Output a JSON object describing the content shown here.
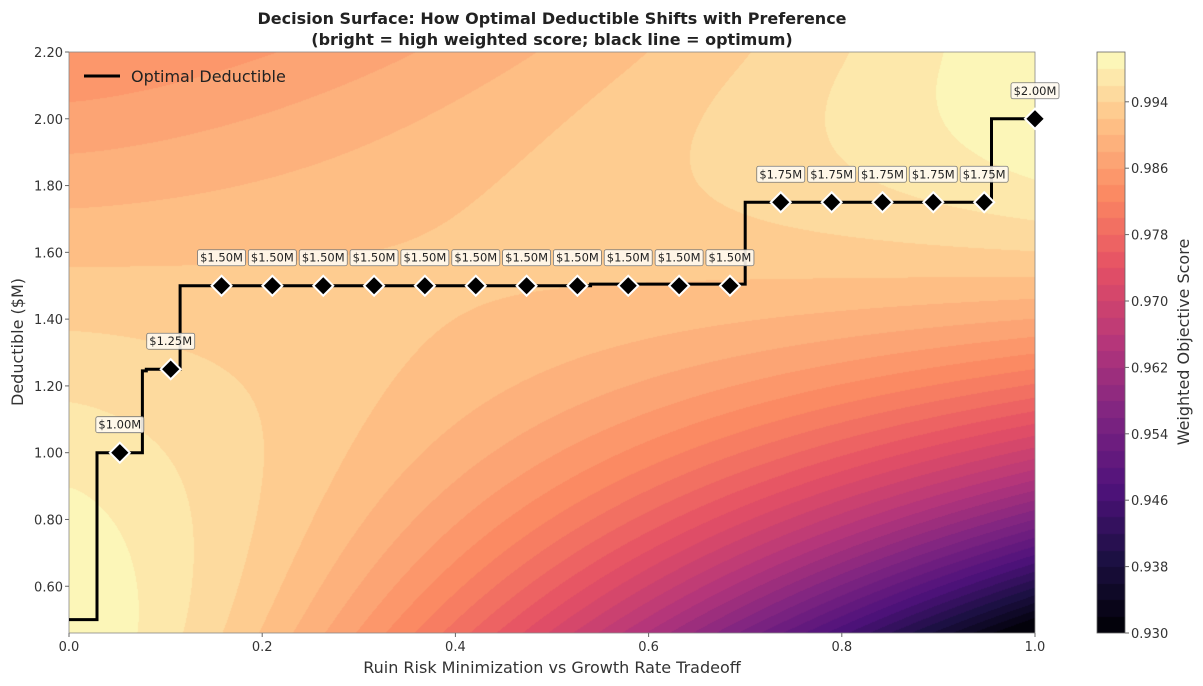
{
  "chart_data": {
    "type": "heatmap",
    "title_line1": "Decision Surface: How Optimal Deductible Shifts with Preference",
    "title_line2": "(bright = high weighted score; black line = optimum)",
    "xlabel": "Ruin Risk Minimization vs Growth Rate Tradeoff",
    "ylabel": "Deductible ($M)",
    "xlim": [
      0.0,
      1.0
    ],
    "ylim": [
      0.46,
      2.2
    ],
    "xticks": [
      "0.0",
      "0.2",
      "0.4",
      "0.6",
      "0.8",
      "1.0"
    ],
    "yticks": [
      "0.60",
      "0.80",
      "1.00",
      "1.20",
      "1.40",
      "1.60",
      "1.80",
      "2.00",
      "2.20"
    ],
    "colormap": "magma",
    "colorbar": {
      "label": "Weighted Objective Score",
      "range": [
        0.93,
        1.0
      ],
      "ticks": [
        "0.930",
        "0.938",
        "0.946",
        "0.954",
        "0.962",
        "0.970",
        "0.978",
        "0.986",
        "0.994"
      ]
    },
    "legend": {
      "position": "top-left",
      "entries": [
        "Optimal Deductible"
      ]
    },
    "optimal_line": {
      "color": "#000000",
      "points": [
        [
          0.0,
          0.5
        ],
        [
          0.029,
          0.5
        ],
        [
          0.029,
          1.0
        ],
        [
          0.076,
          1.0
        ],
        [
          0.076,
          1.245
        ],
        [
          0.08,
          1.245
        ],
        [
          0.08,
          1.25
        ],
        [
          0.115,
          1.25
        ],
        [
          0.115,
          1.5
        ],
        [
          0.54,
          1.5
        ],
        [
          0.54,
          1.505
        ],
        [
          0.7,
          1.505
        ],
        [
          0.7,
          1.75
        ],
        [
          0.955,
          1.75
        ],
        [
          0.955,
          2.0
        ],
        [
          1.0,
          2.0
        ]
      ]
    },
    "markers": [
      {
        "x": 0.0526,
        "y": 1.0,
        "label": "$1.00M"
      },
      {
        "x": 0.1053,
        "y": 1.25,
        "label": "$1.25M"
      },
      {
        "x": 0.1579,
        "y": 1.5,
        "label": "$1.50M"
      },
      {
        "x": 0.2105,
        "y": 1.5,
        "label": "$1.50M"
      },
      {
        "x": 0.2632,
        "y": 1.5,
        "label": "$1.50M"
      },
      {
        "x": 0.3158,
        "y": 1.5,
        "label": "$1.50M"
      },
      {
        "x": 0.3684,
        "y": 1.5,
        "label": "$1.50M"
      },
      {
        "x": 0.4211,
        "y": 1.5,
        "label": "$1.50M"
      },
      {
        "x": 0.4737,
        "y": 1.5,
        "label": "$1.50M"
      },
      {
        "x": 0.5263,
        "y": 1.5,
        "label": "$1.50M"
      },
      {
        "x": 0.5789,
        "y": 1.5,
        "label": "$1.50M"
      },
      {
        "x": 0.6316,
        "y": 1.5,
        "label": "$1.50M"
      },
      {
        "x": 0.6842,
        "y": 1.5,
        "label": "$1.50M"
      },
      {
        "x": 0.7368,
        "y": 1.75,
        "label": "$1.75M"
      },
      {
        "x": 0.7895,
        "y": 1.75,
        "label": "$1.75M"
      },
      {
        "x": 0.8421,
        "y": 1.75,
        "label": "$1.75M"
      },
      {
        "x": 0.8947,
        "y": 1.75,
        "label": "$1.75M"
      },
      {
        "x": 0.9474,
        "y": 1.75,
        "label": "$1.75M"
      },
      {
        "x": 1.0,
        "y": 2.0,
        "label": "$2.00M"
      }
    ]
  }
}
